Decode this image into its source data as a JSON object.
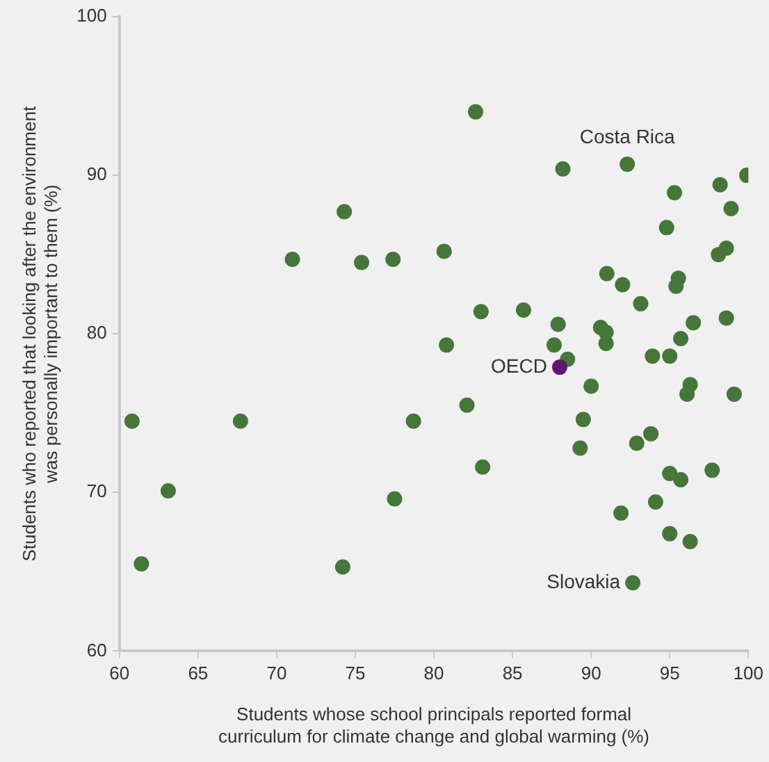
{
  "chart_data": {
    "type": "scatter",
    "xlabel": "Students whose school principals reported formal curriculum for climate change and global warming (%)",
    "ylabel": "Students who reported that looking after the environment was personally important to them (%)",
    "x": [
      60.8,
      61.4,
      63.1,
      67.7,
      71.0,
      74.3,
      75.4,
      77.4,
      78.7,
      77.5,
      74.2,
      80.65,
      80.8,
      82.65,
      83.0,
      82.1,
      83.1,
      85.7,
      88.2,
      92.3,
      87.9,
      87.65,
      88.5,
      88.0,
      90.0,
      89.5,
      89.3,
      90.6,
      90.95,
      90.95,
      91.0,
      92.0,
      93.15,
      93.9,
      95.0,
      92.9,
      93.8,
      91.9,
      94.1,
      95.0,
      95.7,
      97.7,
      95.0,
      96.3,
      92.65,
      94.8,
      95.3,
      95.4,
      95.55,
      95.7,
      96.5,
      96.3,
      96.1,
      98.1,
      98.6,
      98.2,
      98.9,
      99.9,
      98.6,
      99.1
    ],
    "values": [
      74.5,
      65.5,
      70.1,
      74.5,
      84.7,
      87.7,
      84.5,
      84.7,
      74.5,
      69.6,
      65.3,
      85.2,
      79.3,
      94.0,
      81.4,
      75.5,
      71.6,
      81.5,
      90.4,
      90.7,
      80.6,
      79.3,
      78.4,
      77.9,
      76.7,
      74.6,
      72.8,
      80.4,
      80.1,
      79.4,
      83.8,
      83.1,
      81.9,
      78.6,
      78.6,
      73.1,
      73.7,
      68.7,
      69.4,
      71.2,
      70.8,
      71.4,
      67.4,
      66.9,
      64.3,
      86.7,
      88.9,
      83.0,
      83.5,
      79.7,
      80.7,
      76.8,
      76.2,
      85.0,
      85.4,
      89.4,
      87.9,
      90.0,
      81.0,
      76.2
    ],
    "colors": [
      "#46763a",
      "#46763a",
      "#46763a",
      "#46763a",
      "#46763a",
      "#46763a",
      "#46763a",
      "#46763a",
      "#46763a",
      "#46763a",
      "#46763a",
      "#46763a",
      "#46763a",
      "#46763a",
      "#46763a",
      "#46763a",
      "#46763a",
      "#46763a",
      "#46763a",
      "#46763a",
      "#46763a",
      "#46763a",
      "#46763a",
      "#5e1770",
      "#46763a",
      "#46763a",
      "#46763a",
      "#46763a",
      "#46763a",
      "#46763a",
      "#46763a",
      "#46763a",
      "#46763a",
      "#46763a",
      "#46763a",
      "#46763a",
      "#46763a",
      "#46763a",
      "#46763a",
      "#46763a",
      "#46763a",
      "#46763a",
      "#46763a",
      "#46763a",
      "#46763a",
      "#46763a",
      "#46763a",
      "#46763a",
      "#46763a",
      "#46763a",
      "#46763a",
      "#46763a",
      "#46763a",
      "#46763a",
      "#46763a",
      "#46763a",
      "#46763a",
      "#46763a",
      "#46763a",
      "#46763a"
    ],
    "xlim": [
      60,
      100
    ],
    "xticks": [
      60,
      65,
      70,
      75,
      80,
      85,
      90,
      95,
      100
    ],
    "ylim": [
      60,
      100
    ],
    "yticks": [
      60,
      70,
      80,
      90,
      100
    ],
    "grid": false,
    "legend": false,
    "marker": "circle",
    "annotations": [
      {
        "text": "Costa Rica",
        "x": 92.3,
        "y": 90.7
      },
      {
        "text": "OECD",
        "x": 88.0,
        "y": 77.9
      },
      {
        "text": "Slovakia",
        "x": 92.65,
        "y": 64.3
      }
    ]
  }
}
